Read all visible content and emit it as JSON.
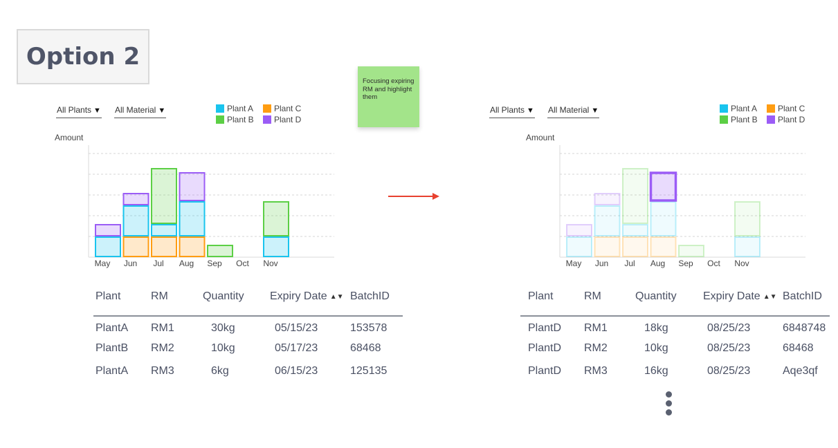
{
  "title": "Option 2",
  "sticky_note": "Focusing expiring RM and highlight them",
  "panels": [
    {
      "filters": {
        "plants": "All Plants",
        "material": "All Material"
      },
      "legend": [
        {
          "label": "Plant A",
          "color": "#19c4ee"
        },
        {
          "label": "Plant C",
          "color": "#ff9d12"
        },
        {
          "label": "Plant B",
          "color": "#5ccf45"
        },
        {
          "label": "Plant D",
          "color": "#9b5cf6"
        }
      ],
      "ylabel": "Amount",
      "table": {
        "headers": [
          "Plant",
          "RM",
          "Quantity",
          "Expiry Date",
          "BatchID"
        ],
        "rows": [
          [
            "PlantA",
            "RM1",
            "30kg",
            "05/15/23",
            "153578"
          ],
          [
            "PlantB",
            "RM2",
            "10kg",
            "05/17/23",
            "68468"
          ],
          [
            "PlantA",
            "RM3",
            "6kg",
            "06/15/23",
            "125135"
          ]
        ]
      }
    },
    {
      "filters": {
        "plants": "All Plants",
        "material": "All Material"
      },
      "legend": [
        {
          "label": "Plant A",
          "color": "#19c4ee"
        },
        {
          "label": "Plant C",
          "color": "#ff9d12"
        },
        {
          "label": "Plant B",
          "color": "#5ccf45"
        },
        {
          "label": "Plant D",
          "color": "#9b5cf6"
        }
      ],
      "ylabel": "Amount",
      "table": {
        "headers": [
          "Plant",
          "RM",
          "Quantity",
          "Expiry Date",
          "BatchID"
        ],
        "rows": [
          [
            "PlantD",
            "RM1",
            "18kg",
            "08/25/23",
            "6848748"
          ],
          [
            "PlantD",
            "RM2",
            "10kg",
            "08/25/23",
            "68468"
          ],
          [
            "PlantD",
            "RM3",
            "16kg",
            "08/25/23",
            "Aqe3qf"
          ]
        ]
      }
    }
  ],
  "chart_data": [
    {
      "type": "bar",
      "stacked": true,
      "categories": [
        "May",
        "Jun",
        "Jul",
        "Aug",
        "Sep",
        "Oct",
        "Nov"
      ],
      "series": [
        {
          "name": "Plant A",
          "color": "#19c4ee",
          "values": [
            1,
            1.5,
            0.6,
            1.7,
            0,
            0,
            1
          ]
        },
        {
          "name": "Plant B",
          "color": "#5ccf45",
          "values": [
            0,
            0,
            2.7,
            0,
            0.6,
            0,
            1.7
          ]
        },
        {
          "name": "Plant C",
          "color": "#ff9d12",
          "values": [
            0,
            1,
            1,
            1,
            0,
            0,
            0
          ]
        },
        {
          "name": "Plant D",
          "color": "#9b5cf6",
          "values": [
            0.6,
            0.6,
            0,
            1.4,
            0,
            0,
            0
          ]
        }
      ],
      "ylabel": "Amount",
      "ylim": [
        0,
        5.4
      ],
      "grid": true,
      "highlight": null
    },
    {
      "type": "bar",
      "stacked": true,
      "categories": [
        "May",
        "Jun",
        "Jul",
        "Aug",
        "Sep",
        "Oct",
        "Nov"
      ],
      "series": [
        {
          "name": "Plant A",
          "color": "#19c4ee",
          "values": [
            1,
            1.5,
            0.6,
            1.7,
            0,
            0,
            1
          ]
        },
        {
          "name": "Plant B",
          "color": "#5ccf45",
          "values": [
            0,
            0,
            2.7,
            0,
            0.6,
            0,
            1.7
          ]
        },
        {
          "name": "Plant C",
          "color": "#ff9d12",
          "values": [
            0,
            1,
            1,
            1,
            0,
            0,
            0
          ]
        },
        {
          "name": "Plant D",
          "color": "#9b5cf6",
          "values": [
            0.6,
            0.6,
            0,
            1.4,
            0,
            0,
            0
          ]
        }
      ],
      "ylabel": "Amount",
      "ylim": [
        0,
        5.4
      ],
      "grid": true,
      "highlight": {
        "series": "Plant D",
        "category": "Aug"
      }
    }
  ]
}
